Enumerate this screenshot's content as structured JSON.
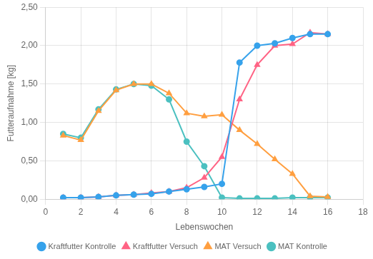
{
  "chart_data": {
    "type": "line",
    "xlabel": "Lebenswochen",
    "ylabel": "Futteraufnahme [kg]",
    "x": [
      1,
      2,
      3,
      4,
      5,
      6,
      7,
      8,
      9,
      10,
      11,
      12,
      13,
      14,
      15,
      16
    ],
    "xlim": [
      0,
      18
    ],
    "xticks": [
      0,
      2,
      4,
      6,
      8,
      10,
      12,
      14,
      16,
      18
    ],
    "ylim": [
      0,
      2.5
    ],
    "yticks": [
      {
        "value": 0.0,
        "label": "0,00"
      },
      {
        "value": 0.5,
        "label": "0,50"
      },
      {
        "value": 1.0,
        "label": "1,00"
      },
      {
        "value": 1.5,
        "label": "1,50"
      },
      {
        "value": 2.0,
        "label": "2,00"
      },
      {
        "value": 2.5,
        "label": "2,50"
      }
    ],
    "grid": true,
    "legend": "bottom",
    "series": [
      {
        "name": "Kraftfutter Kontrolle",
        "marker": "circle",
        "values": [
          0.02,
          0.02,
          0.03,
          0.05,
          0.06,
          0.07,
          0.1,
          0.13,
          0.16,
          0.2,
          1.78,
          2.0,
          2.03,
          2.1,
          2.15,
          2.15
        ]
      },
      {
        "name": "Kraftfutter Versuch",
        "marker": "triangle",
        "values": [
          0.02,
          0.02,
          0.03,
          0.05,
          0.06,
          0.08,
          0.1,
          0.15,
          0.28,
          0.55,
          1.3,
          1.75,
          2.0,
          2.02,
          2.17,
          2.15
        ]
      },
      {
        "name": "MAT Versuch",
        "marker": "triangle",
        "values": [
          0.83,
          0.77,
          1.15,
          1.42,
          1.5,
          1.5,
          1.38,
          1.12,
          1.08,
          1.1,
          0.9,
          0.72,
          0.52,
          0.33,
          0.04,
          0.03
        ]
      },
      {
        "name": "MAT Kontrolle",
        "marker": "circle",
        "values": [
          0.85,
          0.8,
          1.17,
          1.43,
          1.5,
          1.48,
          1.3,
          0.75,
          0.43,
          0.02,
          0.01,
          0.01,
          0.01,
          0.02,
          0.02,
          0.02
        ]
      }
    ]
  }
}
